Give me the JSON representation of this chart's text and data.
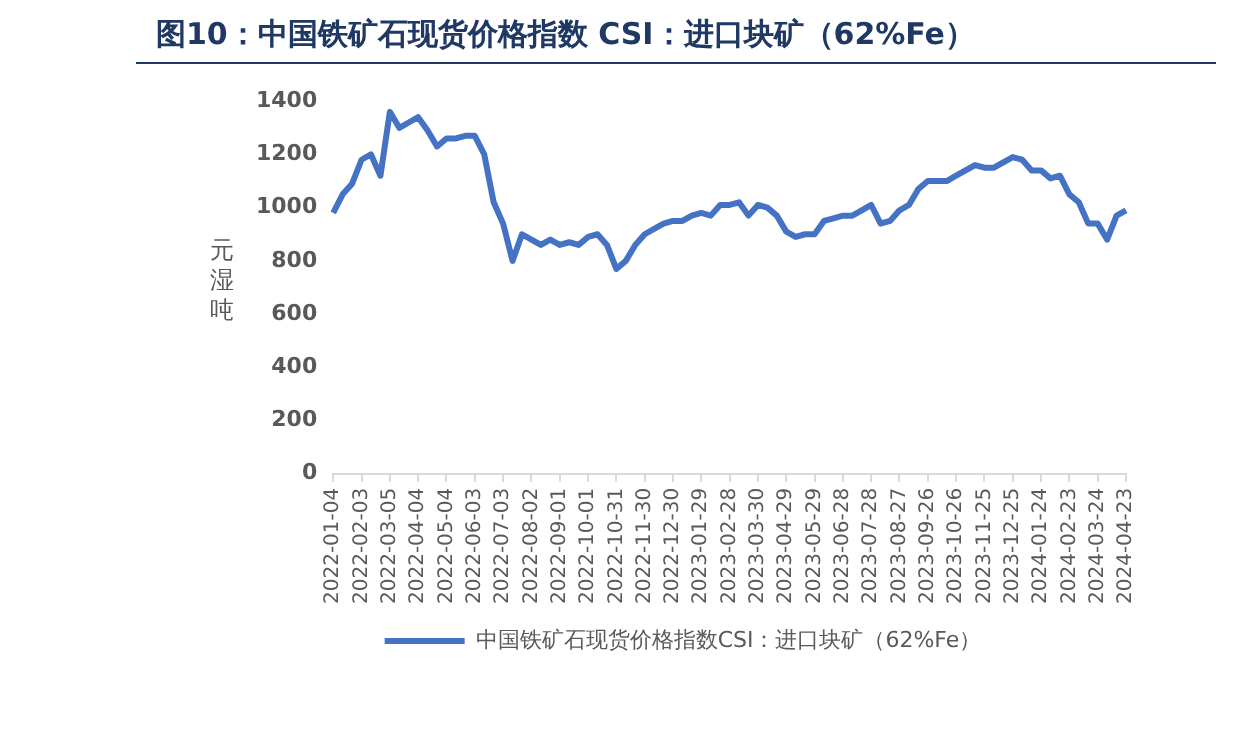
{
  "chart_data": {
    "type": "line",
    "title": "图10：中国铁矿石现货价格指数 CSI：进口块矿（62%Fe）",
    "ylabel": "元湿吨",
    "categories": [
      "2022-01-04",
      null,
      null,
      "2022-02-03",
      null,
      null,
      "2022-03-05",
      null,
      null,
      "2022-04-04",
      null,
      null,
      "2022-05-04",
      null,
      null,
      "2022-06-03",
      null,
      null,
      "2022-07-03",
      null,
      null,
      "2022-08-02",
      null,
      null,
      "2022-09-01",
      null,
      null,
      "2022-10-01",
      null,
      null,
      "2022-10-31",
      null,
      null,
      "2022-11-30",
      null,
      null,
      "2022-12-30",
      null,
      null,
      "2023-01-29",
      null,
      null,
      "2023-02-28",
      null,
      null,
      "2023-03-30",
      null,
      null,
      "2023-04-29",
      null,
      null,
      "2023-05-29",
      null,
      null,
      "2023-06-28",
      null,
      null,
      "2023-07-28",
      null,
      null,
      "2023-08-27",
      null,
      null,
      "2023-09-26",
      null,
      null,
      "2023-10-26",
      null,
      null,
      "2023-11-25",
      null,
      null,
      "2023-12-25",
      null,
      null,
      "2024-01-24",
      null,
      null,
      "2024-02-23",
      null,
      null,
      "2024-03-24",
      null,
      null,
      "2024-04-23"
    ],
    "series": [
      {
        "name": "中国铁矿石现货价格指数CSI：进口块矿（62%Fe）",
        "color": "#4472c4",
        "values": [
          980,
          1050,
          1090,
          1180,
          1200,
          1120,
          1360,
          1300,
          1320,
          1340,
          1290,
          1230,
          1260,
          1260,
          1270,
          1270,
          1200,
          1020,
          940,
          800,
          900,
          880,
          860,
          880,
          860,
          870,
          860,
          890,
          900,
          860,
          770,
          800,
          860,
          900,
          920,
          940,
          950,
          950,
          970,
          980,
          970,
          1010,
          1010,
          1020,
          970,
          1010,
          1000,
          970,
          910,
          890,
          900,
          900,
          950,
          960,
          970,
          970,
          990,
          1010,
          940,
          950,
          990,
          1010,
          1070,
          1100,
          1100,
          1100,
          1120,
          1140,
          1160,
          1150,
          1150,
          1170,
          1190,
          1180,
          1140,
          1140,
          1110,
          1120,
          1050,
          1020,
          940,
          940,
          880,
          970,
          990
        ]
      }
    ],
    "ylim": [
      0,
      1400
    ],
    "yticks": [
      0,
      200,
      400,
      600,
      800,
      1000,
      1200,
      1400
    ],
    "legend": "bottom"
  }
}
